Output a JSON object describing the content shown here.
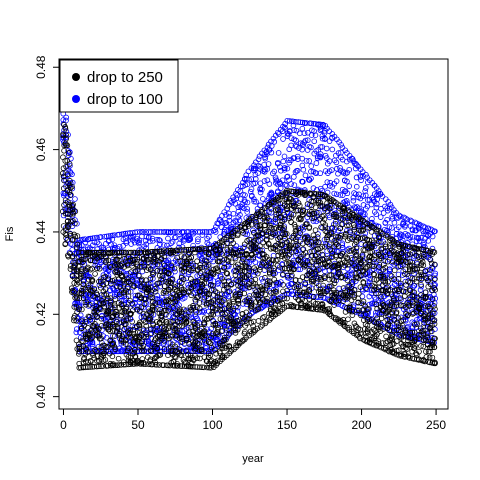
{
  "chart_data": {
    "type": "scatter",
    "xlabel": "year",
    "ylabel": "Fis",
    "xlim": [
      -3,
      258
    ],
    "ylim": [
      0.397,
      0.482
    ],
    "x_ticks": [
      0,
      50,
      100,
      150,
      200,
      250
    ],
    "y_ticks": [
      0.4,
      0.42,
      0.44,
      0.46,
      0.48
    ],
    "x_tick_labels": [
      "0",
      "50",
      "100",
      "150",
      "200",
      "250"
    ],
    "y_tick_labels": [
      "0.40",
      "0.42",
      "0.44",
      "0.46",
      "0.48"
    ],
    "marker": "open-circle",
    "legend": {
      "position": "top-left"
    },
    "series": [
      {
        "name": "drop to 250",
        "color": "#000000",
        "envelope": [
          {
            "x": 0,
            "lo": 0.44,
            "hi": 0.47
          },
          {
            "x": 5,
            "lo": 0.43,
            "hi": 0.455
          },
          {
            "x": 10,
            "lo": 0.407,
            "hi": 0.435
          },
          {
            "x": 50,
            "lo": 0.408,
            "hi": 0.435
          },
          {
            "x": 100,
            "lo": 0.407,
            "hi": 0.436
          },
          {
            "x": 125,
            "lo": 0.415,
            "hi": 0.443
          },
          {
            "x": 150,
            "lo": 0.422,
            "hi": 0.45
          },
          {
            "x": 175,
            "lo": 0.421,
            "hi": 0.449
          },
          {
            "x": 200,
            "lo": 0.414,
            "hi": 0.443
          },
          {
            "x": 225,
            "lo": 0.41,
            "hi": 0.437
          },
          {
            "x": 250,
            "lo": 0.408,
            "hi": 0.435
          }
        ]
      },
      {
        "name": "drop to 100",
        "color": "#0000ff",
        "envelope": [
          {
            "x": 0,
            "lo": 0.444,
            "hi": 0.472
          },
          {
            "x": 5,
            "lo": 0.434,
            "hi": 0.458
          },
          {
            "x": 10,
            "lo": 0.411,
            "hi": 0.438
          },
          {
            "x": 50,
            "lo": 0.411,
            "hi": 0.44
          },
          {
            "x": 100,
            "lo": 0.411,
            "hi": 0.44
          },
          {
            "x": 125,
            "lo": 0.42,
            "hi": 0.455
          },
          {
            "x": 150,
            "lo": 0.425,
            "hi": 0.467
          },
          {
            "x": 175,
            "lo": 0.424,
            "hi": 0.466
          },
          {
            "x": 200,
            "lo": 0.42,
            "hi": 0.455
          },
          {
            "x": 225,
            "lo": 0.415,
            "hi": 0.444
          },
          {
            "x": 250,
            "lo": 0.413,
            "hi": 0.44
          }
        ]
      }
    ]
  }
}
